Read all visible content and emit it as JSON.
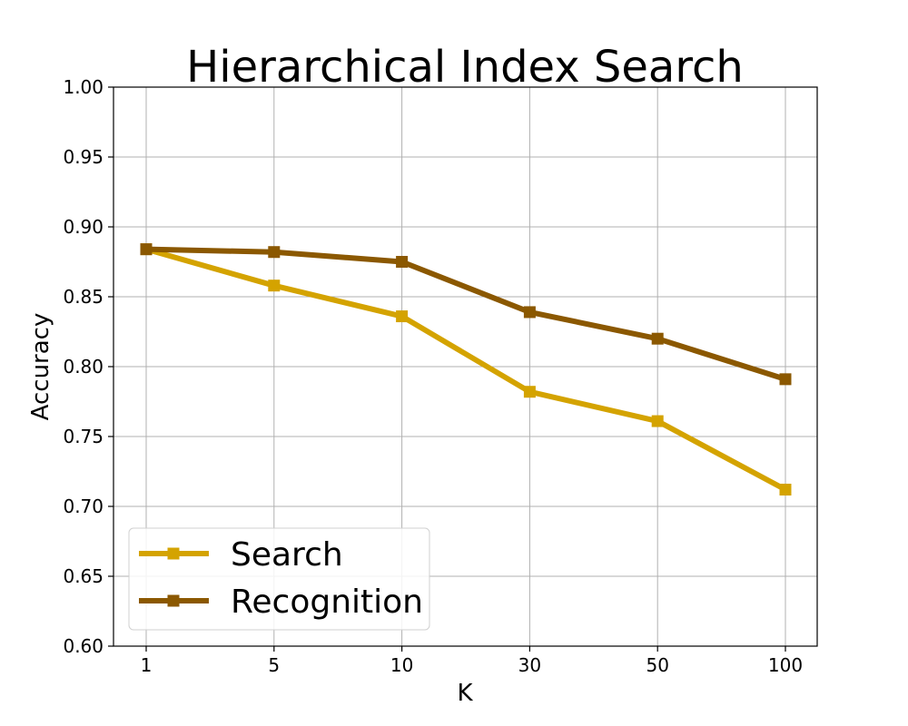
{
  "chart_data": {
    "type": "line",
    "title": "Hierarchical Index Search",
    "xlabel": "K",
    "ylabel": "Accuracy",
    "categories": [
      "1",
      "5",
      "10",
      "30",
      "50",
      "100"
    ],
    "ylim": [
      0.6,
      1.0
    ],
    "yticks": [
      "0.60",
      "0.65",
      "0.70",
      "0.75",
      "0.80",
      "0.85",
      "0.90",
      "0.95",
      "1.00"
    ],
    "grid": true,
    "legend_position": "bottom-left",
    "series": [
      {
        "name": "Search",
        "color": "#d4a300",
        "marker": "square",
        "values": [
          0.884,
          0.858,
          0.836,
          0.782,
          0.761,
          0.712
        ]
      },
      {
        "name": "Recognition",
        "color": "#8b5800",
        "marker": "square",
        "values": [
          0.884,
          0.882,
          0.875,
          0.839,
          0.82,
          0.791
        ]
      }
    ]
  }
}
